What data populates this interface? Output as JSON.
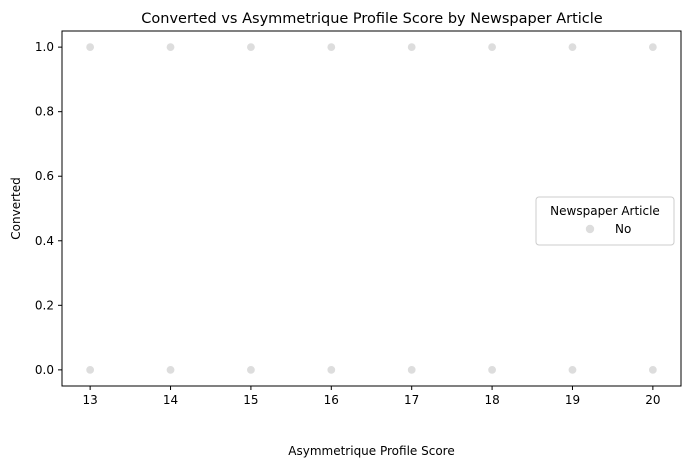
{
  "chart_data": {
    "type": "scatter",
    "title": "Converted vs Asymmetrique Profile Score by Newspaper Article",
    "xlabel": "Asymmetrique Profile Score",
    "ylabel": "Converted",
    "xlim": [
      12.65,
      20.35
    ],
    "ylim": [
      -0.05,
      1.05
    ],
    "xticks": [
      13,
      14,
      15,
      16,
      17,
      18,
      19,
      20
    ],
    "yticks": [
      0.0,
      0.2,
      0.4,
      0.6,
      0.8,
      1.0
    ],
    "ytick_labels": [
      "0.0",
      "0.2",
      "0.4",
      "0.6",
      "0.8",
      "1.0"
    ],
    "grid": false,
    "legend": {
      "title": "Newspaper Article",
      "placement": "center-right",
      "entries": [
        "No"
      ]
    },
    "series": [
      {
        "name": "No",
        "color": "#dddddd",
        "x": [
          13,
          14,
          15,
          16,
          17,
          18,
          19,
          20,
          13,
          14,
          15,
          16,
          17,
          18,
          19,
          20
        ],
        "y": [
          1,
          1,
          1,
          1,
          1,
          1,
          1,
          1,
          0,
          0,
          0,
          0,
          0,
          0,
          0,
          0
        ]
      }
    ]
  }
}
